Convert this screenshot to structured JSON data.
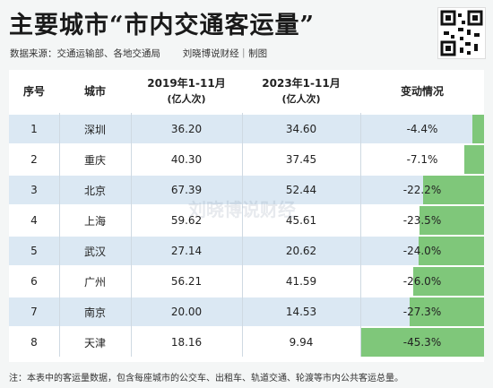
{
  "header": {
    "title": "主要城市“市内交通客运量”",
    "source": "数据来源：交通运输部、各地交通局",
    "author": "刘晓博说财经｜制图"
  },
  "table": {
    "columns": [
      {
        "label": "序号",
        "sub": ""
      },
      {
        "label": "城市",
        "sub": ""
      },
      {
        "label": "2019年1-11月",
        "sub": "(亿人次)"
      },
      {
        "label": "2023年1-11月",
        "sub": "(亿人次)"
      },
      {
        "label": "变动情况",
        "sub": ""
      }
    ],
    "rows": [
      {
        "no": "1",
        "city": "深圳",
        "v2019": "36.20",
        "v2023": "34.60",
        "change": "-4.4%",
        "change_value": -4.4
      },
      {
        "no": "2",
        "city": "重庆",
        "v2019": "40.30",
        "v2023": "37.45",
        "change": "-7.1%",
        "change_value": -7.1
      },
      {
        "no": "3",
        "city": "北京",
        "v2019": "67.39",
        "v2023": "52.44",
        "change": "-22.2%",
        "change_value": -22.2
      },
      {
        "no": "4",
        "city": "上海",
        "v2019": "59.62",
        "v2023": "45.61",
        "change": "-23.5%",
        "change_value": -23.5
      },
      {
        "no": "5",
        "city": "武汉",
        "v2019": "27.14",
        "v2023": "20.62",
        "change": "-24.0%",
        "change_value": -24.0
      },
      {
        "no": "6",
        "city": "广州",
        "v2019": "56.21",
        "v2023": "41.59",
        "change": "-26.0%",
        "change_value": -26.0
      },
      {
        "no": "7",
        "city": "南京",
        "v2019": "20.00",
        "v2023": "14.53",
        "change": "-27.3%",
        "change_value": -27.3
      },
      {
        "no": "8",
        "city": "天津",
        "v2019": "18.16",
        "v2023": "9.94",
        "change": "-45.3%",
        "change_value": -45.3
      }
    ],
    "bar_color": "#7fc77a",
    "shade_color": "#dbe8f3"
  },
  "watermark": "刘晓博说财经",
  "note": "注：本表中的客运量数据，包含每座城市的公交车、出租车、轨道交通、轮渡等市内公共客运总量。"
}
